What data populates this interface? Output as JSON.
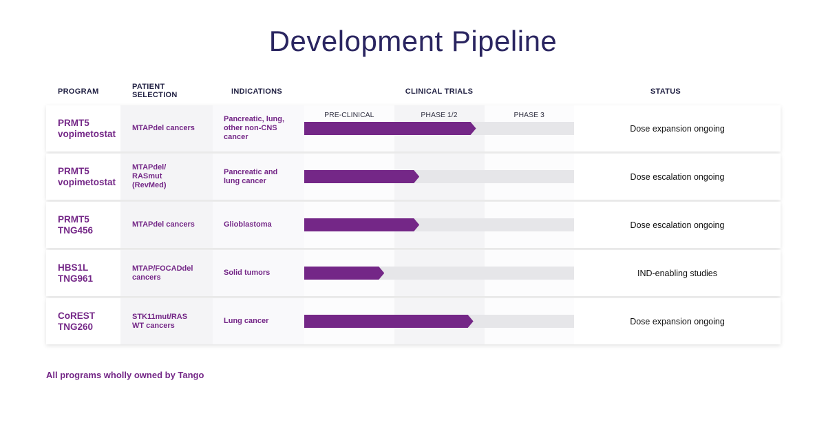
{
  "title": "Development Pipeline",
  "headers": {
    "program": "PROGRAM",
    "patient_selection": "PATIENT\nSELECTION",
    "indications": "INDICATIONS",
    "clinical_trials": "CLINICAL TRIALS",
    "status": "STATUS"
  },
  "phases": [
    "PRE-CLINICAL",
    "PHASE 1/2",
    "PHASE 3"
  ],
  "colors": {
    "accent": "#742787",
    "track": "#e6e6e9",
    "title": "#2a2560"
  },
  "footnote": "All programs wholly owned by Tango",
  "chart_data": {
    "type": "bar",
    "orientation": "horizontal",
    "axis": [
      "PRE-CLINICAL",
      "PHASE 1/2",
      "PHASE 3"
    ],
    "xlim": [
      0,
      3
    ],
    "rows": [
      {
        "program": [
          "PRMT5",
          "vopimetostat"
        ],
        "patient_selection": "MTAPdel cancers",
        "indications": "Pancreatic, lung,\nother non-CNS\ncancer",
        "progress": 1.91,
        "status": "Dose expansion ongoing"
      },
      {
        "program": [
          "PRMT5",
          "vopimetostat"
        ],
        "patient_selection": "MTAPdel/\nRASmut\n(RevMed)",
        "indications": "Pancreatic and\nlung cancer",
        "progress": 1.28,
        "status": "Dose escalation ongoing"
      },
      {
        "program": [
          "PRMT5",
          "TNG456"
        ],
        "patient_selection": "MTAPdel cancers",
        "indications": "Glioblastoma",
        "progress": 1.28,
        "status": "Dose escalation ongoing"
      },
      {
        "program": [
          "HBS1L",
          "TNG961"
        ],
        "patient_selection": "MTAP/FOCADdel\ncancers",
        "indications": "Solid tumors",
        "progress": 0.89,
        "status": "IND-enabling studies"
      },
      {
        "program": [
          "CoREST",
          "TNG260"
        ],
        "patient_selection": "STK11mut/RAS\nWT cancers",
        "indications": "Lung cancer",
        "progress": 1.88,
        "status": "Dose expansion ongoing"
      }
    ]
  }
}
